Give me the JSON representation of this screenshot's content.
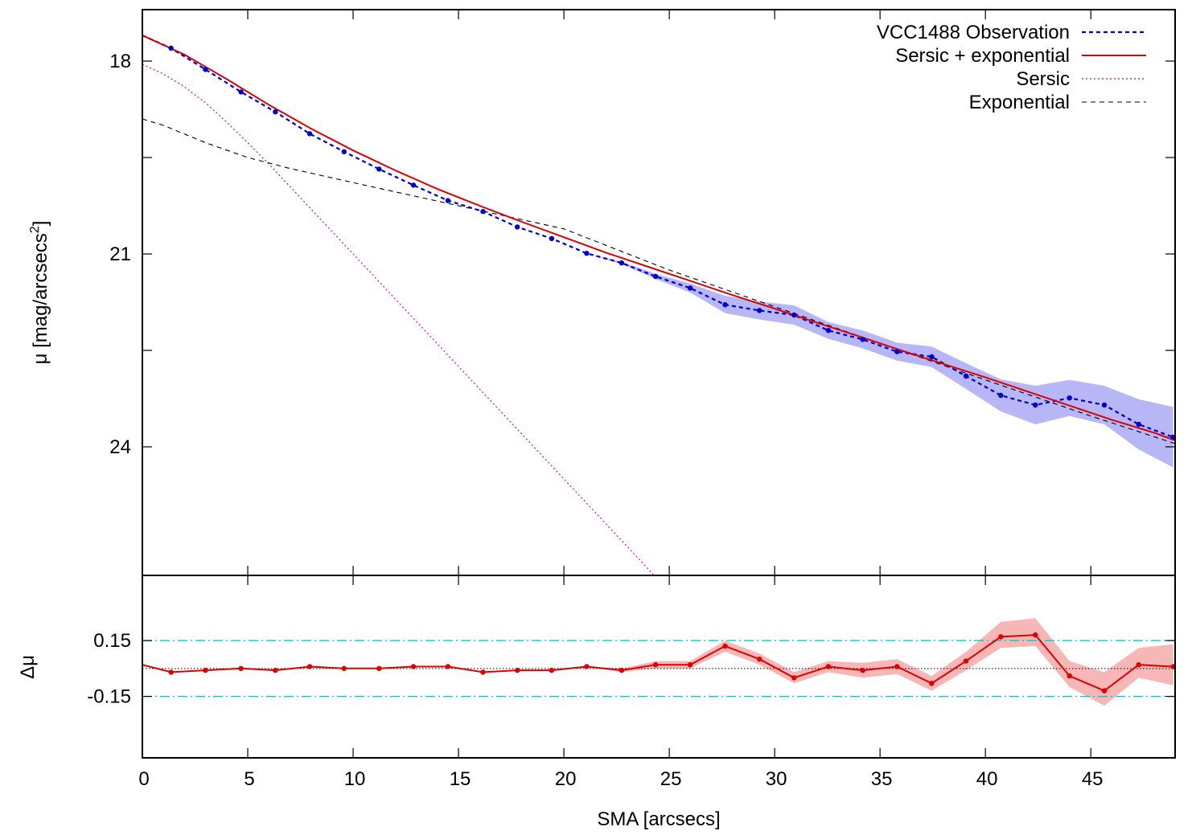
{
  "chart_data": [
    {
      "type": "line",
      "panel": "profile",
      "ylabel": "μ [mag/arcsecs",
      "ylabel_sup": "2",
      "ylabel_close": "]",
      "xlim": [
        0,
        49
      ],
      "ylim": [
        26,
        17.2
      ],
      "y_reversed": true,
      "yticks": [
        18,
        21,
        24
      ],
      "yticklabels": [
        "18",
        "21",
        "24"
      ],
      "ygrid": false,
      "legend_position": "top-right",
      "legend": [
        {
          "label": "VCC1488 Observation",
          "color": "#0000cc",
          "style": "dashed"
        },
        {
          "label": "Sersic + exponential",
          "color": "#dd0000",
          "style": "solid"
        },
        {
          "label": "Sersic",
          "color": "#cc00cc",
          "style": "dotted"
        },
        {
          "label": "Exponential",
          "color": "#000000",
          "style": "dashed"
        }
      ],
      "band_color": "#b7b7f7",
      "observation": {
        "x": [
          0,
          1.36,
          2.99,
          4.68,
          6.31,
          7.94,
          9.57,
          11.23,
          12.86,
          14.5,
          16.16,
          17.79,
          19.42,
          21.08,
          22.74,
          24.35,
          25.99,
          27.65,
          29.28,
          30.92,
          32.55,
          34.18,
          35.81,
          37.45,
          39.08,
          40.73,
          42.37,
          43.99,
          45.64,
          47.27,
          48.91
        ],
        "y": [
          17.6,
          17.8,
          18.13,
          18.48,
          18.79,
          19.13,
          19.41,
          19.68,
          19.93,
          20.17,
          20.34,
          20.58,
          20.76,
          20.99,
          21.14,
          21.35,
          21.53,
          21.79,
          21.88,
          21.95,
          22.19,
          22.33,
          22.52,
          22.6,
          22.9,
          23.2,
          23.35,
          23.24,
          23.35,
          23.65,
          23.85
        ],
        "err_low": [
          17.6,
          17.8,
          18.13,
          18.48,
          18.79,
          19.13,
          19.41,
          19.68,
          19.93,
          20.17,
          20.34,
          20.58,
          20.76,
          20.99,
          21.12,
          21.31,
          21.46,
          21.65,
          21.74,
          21.8,
          22.06,
          22.19,
          22.38,
          22.44,
          22.7,
          22.95,
          23.05,
          22.96,
          23.05,
          23.26,
          23.38
        ],
        "err_high": [
          17.6,
          17.8,
          18.13,
          18.48,
          18.79,
          19.13,
          19.41,
          19.68,
          19.93,
          20.17,
          20.34,
          20.58,
          20.76,
          20.99,
          21.16,
          21.39,
          21.6,
          21.92,
          22.02,
          22.1,
          22.32,
          22.47,
          22.66,
          22.76,
          23.1,
          23.45,
          23.65,
          23.52,
          23.65,
          24.04,
          24.32
        ]
      },
      "model_total": {
        "x": [
          0,
          2,
          4,
          6,
          8,
          10,
          12,
          14,
          16,
          18,
          20,
          22,
          24,
          26,
          28,
          30,
          32,
          34,
          36,
          38,
          40,
          42,
          44,
          46,
          48,
          49
        ],
        "y": [
          17.6,
          17.9,
          18.28,
          18.68,
          19.05,
          19.39,
          19.7,
          19.99,
          20.25,
          20.5,
          20.74,
          20.98,
          21.2,
          21.42,
          21.64,
          21.85,
          22.07,
          22.28,
          22.5,
          22.71,
          22.92,
          23.14,
          23.36,
          23.58,
          23.78,
          23.9
        ]
      },
      "model_sersic": {
        "x": [
          0,
          1,
          2,
          3,
          4,
          5,
          6,
          7,
          8,
          9,
          10,
          12,
          14,
          16,
          18,
          20,
          22,
          24,
          24.8
        ],
        "y": [
          18.05,
          18.2,
          18.4,
          18.65,
          18.95,
          19.27,
          19.6,
          19.95,
          20.3,
          20.65,
          21.0,
          21.7,
          22.4,
          23.1,
          23.8,
          24.5,
          25.2,
          25.9,
          26.2
        ]
      },
      "model_exponential": {
        "x": [
          0,
          1,
          3,
          5,
          7,
          10,
          15,
          20,
          25,
          30,
          35,
          40,
          45,
          49
        ],
        "y": [
          18.9,
          19.0,
          19.27,
          19.5,
          19.67,
          19.89,
          20.25,
          20.61,
          21.25,
          21.82,
          22.39,
          22.96,
          23.52,
          23.95
        ]
      }
    },
    {
      "type": "line",
      "panel": "residuals",
      "ylabel": "Δμ",
      "xlabel": "SMA [arcsecs]",
      "xlim": [
        0,
        49
      ],
      "ylim": [
        -0.48,
        0.5
      ],
      "xticks": [
        0,
        5,
        10,
        15,
        20,
        25,
        30,
        35,
        40,
        45
      ],
      "xticklabels": [
        "0",
        "5",
        "10",
        "15",
        "20",
        "25",
        "30",
        "35",
        "40",
        "45"
      ],
      "yticks": [
        0.15,
        -0.15
      ],
      "yticklabels": [
        "0.15",
        "-0.15"
      ],
      "reference_lines": [
        0.15,
        -0.15
      ],
      "reference_color": "#00cccc",
      "zero_line_color": "#000000",
      "band_color": "#f7b7b7",
      "line_color": "#dd0000",
      "residuals": {
        "x": [
          0,
          1.36,
          2.99,
          4.68,
          6.31,
          7.94,
          9.57,
          11.23,
          12.86,
          14.5,
          16.16,
          17.79,
          19.42,
          21.08,
          22.74,
          24.35,
          25.99,
          27.65,
          29.28,
          30.92,
          32.55,
          34.18,
          35.81,
          37.45,
          39.08,
          40.73,
          42.37,
          43.99,
          45.64,
          47.27,
          48.91
        ],
        "y": [
          0.02,
          -0.02,
          -0.01,
          0.0,
          -0.01,
          0.01,
          0.0,
          0.0,
          0.01,
          0.01,
          -0.02,
          -0.01,
          -0.01,
          0.01,
          -0.01,
          0.02,
          0.02,
          0.12,
          0.05,
          -0.05,
          0.01,
          -0.01,
          0.01,
          -0.08,
          0.04,
          0.17,
          0.18,
          -0.04,
          -0.12,
          0.02,
          0.01
        ],
        "err_low": [
          0.02,
          -0.02,
          -0.01,
          0.0,
          -0.01,
          0.01,
          0.0,
          0.0,
          0.01,
          0.01,
          -0.02,
          -0.01,
          -0.01,
          0.01,
          -0.02,
          0.0,
          0.0,
          0.09,
          0.02,
          -0.08,
          -0.02,
          -0.05,
          -0.03,
          -0.12,
          -0.01,
          0.11,
          0.12,
          -0.1,
          -0.2,
          -0.05,
          -0.09
        ],
        "err_high": [
          0.02,
          -0.02,
          -0.01,
          0.0,
          -0.01,
          0.01,
          0.0,
          0.0,
          0.01,
          0.01,
          -0.02,
          -0.01,
          -0.01,
          0.01,
          0.0,
          0.04,
          0.04,
          0.15,
          0.08,
          -0.02,
          0.04,
          0.03,
          0.05,
          -0.04,
          0.09,
          0.25,
          0.27,
          0.04,
          -0.02,
          0.11,
          0.13
        ]
      }
    }
  ]
}
